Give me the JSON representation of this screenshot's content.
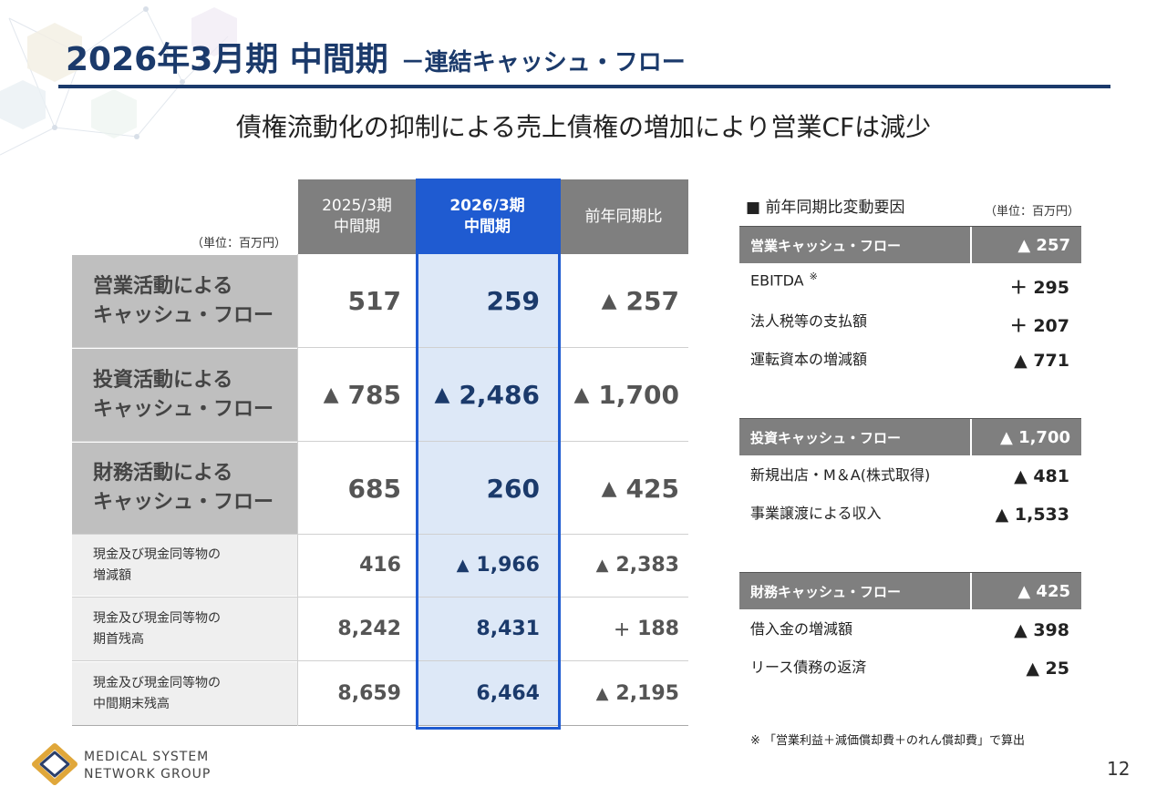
{
  "header": {
    "title": "2026年3月期 中間期",
    "subtitle": "－連結キャッシュ・フロー"
  },
  "headline": "債権流動化の抑制による売上債権の増加により営業CFは減少",
  "main_table": {
    "unit": "（単位：百万円）",
    "columns": [
      {
        "line1": "2025/3期",
        "line2": "中間期"
      },
      {
        "line1": "2026/3期",
        "line2": "中間期"
      },
      {
        "line1": "前年同期比",
        "line2": ""
      }
    ],
    "rows": [
      {
        "label1": "営業活動による",
        "label2": "キャッシュ・フロー",
        "c1_mark": "",
        "c1": "517",
        "c2_mark": "",
        "c2": "259",
        "c3_mark": "▲",
        "c3": "257"
      },
      {
        "label1": "投資活動による",
        "label2": "キャッシュ・フロー",
        "c1_mark": "▲",
        "c1": "785",
        "c2_mark": "▲",
        "c2": "2,486",
        "c3_mark": "▲",
        "c3": "1,700"
      },
      {
        "label1": "財務活動による",
        "label2": "キャッシュ・フロー",
        "c1_mark": "",
        "c1": "685",
        "c2_mark": "",
        "c2": "260",
        "c3_mark": "▲",
        "c3": "425"
      },
      {
        "label1": "現金及び現金同等物の",
        "label2": "増減額",
        "c1_mark": "",
        "c1": "416",
        "c2_mark": "▲",
        "c2": "1,966",
        "c3_mark": "▲",
        "c3": "2,383"
      },
      {
        "label1": "現金及び現金同等物の",
        "label2": "期首残高",
        "c1_mark": "",
        "c1": "8,242",
        "c2_mark": "",
        "c2": "8,431",
        "c3_mark": "＋",
        "c3": "188"
      },
      {
        "label1": "現金及び現金同等物の",
        "label2": "中間期末残高",
        "c1_mark": "",
        "c1": "8,659",
        "c2_mark": "",
        "c2": "6,464",
        "c3_mark": "▲",
        "c3": "2,195"
      }
    ]
  },
  "factors": {
    "title": "■ 前年同期比変動要因",
    "unit": "（単位：百万円）",
    "sections": [
      {
        "header": "営業キャッシュ・フロー",
        "value": "▲ 257",
        "items": [
          {
            "label": "EBITDA",
            "mark": "※",
            "value": "＋ 295"
          },
          {
            "label": "法人税等の支払額",
            "mark": "",
            "value": "＋ 207"
          },
          {
            "label": "運転資本の増減額",
            "mark": "",
            "value": "▲ 771"
          }
        ]
      },
      {
        "header": "投資キャッシュ・フロー",
        "value": "▲ 1,700",
        "items": [
          {
            "label": "新規出店・M＆A(株式取得)",
            "mark": "",
            "value": "▲ 481"
          },
          {
            "label": "事業譲渡による収入",
            "mark": "",
            "value": "▲ 1,533"
          }
        ]
      },
      {
        "header": "財務キャッシュ・フロー",
        "value": "▲ 425",
        "items": [
          {
            "label": "借入金の増減額",
            "mark": "",
            "value": "▲ 398"
          },
          {
            "label": "リース債務の返済",
            "mark": "",
            "value": "▲ 25"
          }
        ]
      }
    ],
    "footnote": "※ 「営業利益＋減価償却費＋のれん償却費」で算出"
  },
  "footer": {
    "logo_line1": "MEDICAL SYSTEM",
    "logo_line2": "NETWORK GROUP",
    "page_number": "12"
  },
  "colors": {
    "navy": "#1b3a6b",
    "accent_blue": "#1f5bd1",
    "highlight": "#dde8f7",
    "gray_header": "#7f7f7f",
    "logo_gold": "#e0a73a"
  }
}
